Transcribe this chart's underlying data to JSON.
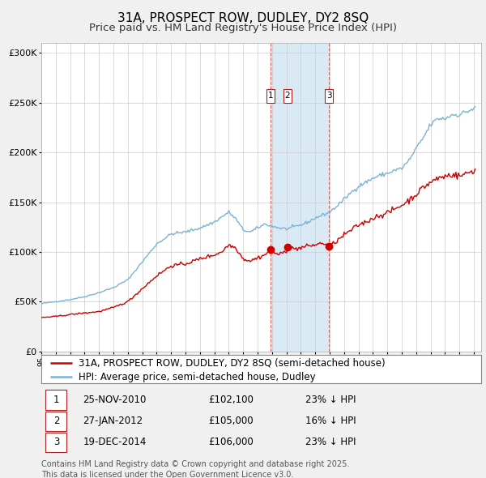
{
  "title": "31A, PROSPECT ROW, DUDLEY, DY2 8SQ",
  "subtitle": "Price paid vs. HM Land Registry's House Price Index (HPI)",
  "ylim": [
    0,
    310000
  ],
  "yticks": [
    0,
    50000,
    100000,
    150000,
    200000,
    250000,
    300000
  ],
  "ytick_labels": [
    "£0",
    "£50K",
    "£100K",
    "£150K",
    "£200K",
    "£250K",
    "£300K"
  ],
  "hpi_color": "#7ab3d4",
  "price_color": "#cc0000",
  "background_color": "#f0f0f0",
  "plot_bg_color": "#ffffff",
  "shade_color": "#daeaf5",
  "grid_color": "#cccccc",
  "transactions": [
    {
      "label": "1",
      "date": "25-NOV-2010",
      "date_num": 2010.9,
      "price": 102100,
      "pct": "23%",
      "dir": "↓"
    },
    {
      "label": "2",
      "date": "27-JAN-2012",
      "date_num": 2012.07,
      "price": 105000,
      "pct": "16%",
      "dir": "↓"
    },
    {
      "label": "3",
      "date": "19-DEC-2014",
      "date_num": 2014.96,
      "price": 106000,
      "pct": "23%",
      "dir": "↓"
    }
  ],
  "legend_property_label": "31A, PROSPECT ROW, DUDLEY, DY2 8SQ (semi-detached house)",
  "legend_hpi_label": "HPI: Average price, semi-detached house, Dudley",
  "footer": "Contains HM Land Registry data © Crown copyright and database right 2025.\nThis data is licensed under the Open Government Licence v3.0.",
  "title_fontsize": 11,
  "subtitle_fontsize": 9.5,
  "tick_fontsize": 8,
  "legend_fontsize": 8.5,
  "footer_fontsize": 7
}
